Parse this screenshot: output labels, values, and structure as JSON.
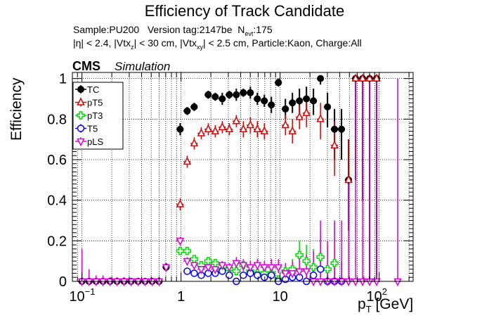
{
  "header": {
    "title": "Efficiency of Track Candidate",
    "info_sample": "Sample:PU200",
    "info_version": "Version tag:2147be",
    "info_nevt_prefix": "N",
    "info_nevt_sub": "evt",
    "info_nevt_value": ":175",
    "cut_eta": "|η| < 2.4, |Vtx",
    "cut_z_sub": "z",
    "cut_mid": "| < 30 cm, |Vtx",
    "cut_xy_sub": "xy",
    "cut_tail": "| < 2.5 cm, Particle:Kaon, Charge:All",
    "cms": "CMS",
    "simulation": "Simulation"
  },
  "chart_data": {
    "type": "scatter",
    "title": "Efficiency of Track Candidate",
    "xlabel_main": "p",
    "xlabel_sub": "T",
    "xlabel_unit": " [GeV]",
    "ylabel": "Efficiency",
    "x_scale": "log",
    "xlim": [
      0.08,
      220
    ],
    "ylim": [
      0,
      1.03
    ],
    "grid": true,
    "legend_position": "top-left",
    "x_ticks": [
      {
        "value": 0.1,
        "label": "10",
        "exp": "−1"
      },
      {
        "value": 1,
        "label": "1",
        "exp": ""
      },
      {
        "value": 10,
        "label": "10",
        "exp": ""
      },
      {
        "value": 100,
        "label": "10",
        "exp": "2"
      }
    ],
    "y_ticks": [
      {
        "value": 0,
        "label": "0"
      },
      {
        "value": 0.2,
        "label": "0.2"
      },
      {
        "value": 0.4,
        "label": "0.4"
      },
      {
        "value": 0.6,
        "label": "0.6"
      },
      {
        "value": 0.8,
        "label": "0.8"
      },
      {
        "value": 1.0,
        "label": "1"
      }
    ],
    "x": [
      0.1,
      0.118,
      0.139,
      0.163,
      0.192,
      0.226,
      0.266,
      0.313,
      0.369,
      0.434,
      0.511,
      0.601,
      0.708,
      0.833,
      0.98,
      1.154,
      1.358,
      1.599,
      1.882,
      2.215,
      2.607,
      3.069,
      3.612,
      4.252,
      5.005,
      5.891,
      6.934,
      8.162,
      9.608,
      11.309,
      13.312,
      15.669,
      18.444,
      21.71,
      25.555,
      30.081,
      35.408,
      41.679,
      49.06,
      57.749,
      67.975,
      80.012,
      94.176,
      110.858,
      130.492,
      153.605,
      180.8
    ],
    "bin_half_widths": [
      0.0085,
      0.0102,
      0.0117,
      0.0137,
      0.016,
      0.019,
      0.022,
      0.026,
      0.03,
      0.036,
      0.042,
      0.05,
      0.058,
      0.068,
      0.081,
      0.096,
      0.112,
      0.132,
      0.156,
      0.184,
      0.216,
      0.254,
      0.298,
      0.351,
      0.413,
      0.486,
      0.573,
      0.673,
      0.792,
      0.932,
      1.097,
      1.29,
      1.52,
      1.79,
      2.1,
      2.48,
      2.92,
      3.43,
      4.04,
      4.76,
      5.6,
      6.59,
      7.76,
      9.13,
      10.75,
      12.65,
      14.9
    ],
    "series": [
      {
        "name": "TC",
        "color": "#000000",
        "marker": "filled-circle",
        "points": [
          [
            0.1,
            0,
            0,
            0
          ],
          [
            0.118,
            0,
            0,
            0
          ],
          [
            0.139,
            0,
            0,
            0
          ],
          [
            0.163,
            0,
            0,
            0
          ],
          [
            0.192,
            0,
            0,
            0
          ],
          [
            0.226,
            0,
            0,
            0
          ],
          [
            0.266,
            0,
            0,
            0
          ],
          [
            0.313,
            0,
            0,
            0
          ],
          [
            0.369,
            0,
            0,
            0
          ],
          [
            0.434,
            0,
            0,
            0
          ],
          [
            0.511,
            0,
            0,
            0
          ],
          [
            0.601,
            0,
            0,
            0
          ],
          [
            0.708,
            0.07,
            0.02,
            0.02
          ],
          [
            0.98,
            0.75,
            0.03,
            0.03
          ],
          [
            1.154,
            0.84,
            0.02,
            0.02
          ],
          [
            1.358,
            0.86,
            0.02,
            0.02
          ],
          [
            1.882,
            0.92,
            0.02,
            0.02
          ],
          [
            2.215,
            0.91,
            0.02,
            0.02
          ],
          [
            2.607,
            0.9,
            0.03,
            0.03
          ],
          [
            3.069,
            0.92,
            0.02,
            0.02
          ],
          [
            3.612,
            0.92,
            0.03,
            0.03
          ],
          [
            4.252,
            0.93,
            0.02,
            0.02
          ],
          [
            5.005,
            0.93,
            0.03,
            0.03
          ],
          [
            5.891,
            0.9,
            0.03,
            0.03
          ],
          [
            6.934,
            0.89,
            0.03,
            0.03
          ],
          [
            8.162,
            0.87,
            0.04,
            0.04
          ],
          [
            9.608,
            0.98,
            0.02,
            0.02
          ],
          [
            11.309,
            0.85,
            0.05,
            0.05
          ],
          [
            13.312,
            0.88,
            0.05,
            0.05
          ],
          [
            15.669,
            0.89,
            0.06,
            0.06
          ],
          [
            18.444,
            0.9,
            0.07,
            0.06
          ],
          [
            21.71,
            0.89,
            0.07,
            0.06
          ],
          [
            25.555,
            1.0,
            0.03,
            0.0
          ],
          [
            30.081,
            0.86,
            0.1,
            0.07
          ],
          [
            35.408,
            0.75,
            0.15,
            0.1
          ],
          [
            41.679,
            0.75,
            0.15,
            0.1
          ],
          [
            49.06,
            0.5,
            0.25,
            0.2
          ],
          [
            57.749,
            1.0,
            0.5,
            0.0
          ],
          [
            67.975,
            1.0,
            0.6,
            0.0
          ],
          [
            80.012,
            1.0,
            1.0,
            0.0
          ],
          [
            94.176,
            1.0,
            1.0,
            0.0
          ]
        ]
      },
      {
        "name": "pT5",
        "color": "#e00000",
        "marker": "open-triangle-up",
        "points": [
          [
            0.98,
            0.38,
            0.03,
            0.03
          ],
          [
            1.154,
            0.59,
            0.03,
            0.03
          ],
          [
            1.358,
            0.68,
            0.03,
            0.03
          ],
          [
            1.599,
            0.73,
            0.03,
            0.03
          ],
          [
            1.882,
            0.75,
            0.03,
            0.03
          ],
          [
            2.215,
            0.74,
            0.03,
            0.03
          ],
          [
            2.607,
            0.76,
            0.03,
            0.03
          ],
          [
            3.069,
            0.75,
            0.03,
            0.03
          ],
          [
            3.612,
            0.79,
            0.03,
            0.03
          ],
          [
            4.252,
            0.75,
            0.04,
            0.04
          ],
          [
            5.005,
            0.77,
            0.04,
            0.04
          ],
          [
            5.891,
            0.75,
            0.04,
            0.04
          ],
          [
            6.934,
            0.74,
            0.04,
            0.04
          ],
          [
            11.309,
            0.77,
            0.05,
            0.05
          ],
          [
            13.312,
            0.74,
            0.06,
            0.06
          ],
          [
            15.669,
            0.81,
            0.06,
            0.06
          ],
          [
            18.444,
            0.83,
            0.07,
            0.06
          ],
          [
            25.555,
            0.8,
            0.1,
            0.08
          ],
          [
            35.408,
            0.67,
            0.15,
            0.12
          ],
          [
            49.06,
            0.5,
            0.25,
            0.2
          ],
          [
            57.749,
            1.0,
            0.5,
            0.0
          ],
          [
            67.975,
            1.0,
            0.6,
            0.0
          ],
          [
            80.012,
            1.0,
            1.0,
            0.0
          ],
          [
            94.176,
            1.0,
            1.0,
            0.0
          ]
        ]
      },
      {
        "name": "pT3",
        "color": "#00dd00",
        "marker": "open-cross",
        "points": [
          [
            0.98,
            0.15,
            0.02,
            0.02
          ],
          [
            1.154,
            0.15,
            0.02,
            0.02
          ],
          [
            1.358,
            0.11,
            0.02,
            0.02
          ],
          [
            1.599,
            0.08,
            0.02,
            0.02
          ],
          [
            1.882,
            0.1,
            0.02,
            0.02
          ],
          [
            2.215,
            0.09,
            0.02,
            0.02
          ],
          [
            2.607,
            0.06,
            0.02,
            0.02
          ],
          [
            3.069,
            0.06,
            0.02,
            0.02
          ],
          [
            3.612,
            0.05,
            0.02,
            0.02
          ],
          [
            4.252,
            0.08,
            0.02,
            0.02
          ],
          [
            5.005,
            0.05,
            0.02,
            0.02
          ],
          [
            5.891,
            0.04,
            0.02,
            0.02
          ],
          [
            6.934,
            0.04,
            0.02,
            0.02
          ],
          [
            8.162,
            0.04,
            0.03,
            0.03
          ],
          [
            9.608,
            0.01,
            0.01,
            0.02
          ],
          [
            11.309,
            0.05,
            0.03,
            0.04
          ],
          [
            13.312,
            0.06,
            0.04,
            0.05
          ],
          [
            15.669,
            0.13,
            0.06,
            0.07
          ],
          [
            18.444,
            0.1,
            0.06,
            0.08
          ],
          [
            21.71,
            0.07,
            0.05,
            0.09
          ],
          [
            25.555,
            0.12,
            0.08,
            0.12
          ],
          [
            30.081,
            0.06,
            0.05,
            0.12
          ],
          [
            35.408,
            0.09,
            0.08,
            0.2
          ]
        ]
      },
      {
        "name": "T5",
        "color": "#0000ee",
        "marker": "open-circle",
        "points": [
          [
            1.154,
            0.05,
            0.01,
            0.01
          ],
          [
            1.358,
            0.04,
            0.01,
            0.01
          ],
          [
            1.599,
            0.03,
            0.01,
            0.01
          ],
          [
            1.882,
            0.04,
            0.01,
            0.01
          ],
          [
            2.215,
            0.04,
            0.01,
            0.01
          ],
          [
            2.607,
            0.05,
            0.01,
            0.01
          ],
          [
            3.069,
            0.03,
            0.01,
            0.01
          ],
          [
            3.612,
            0.0,
            0.0,
            0.01
          ],
          [
            4.252,
            0.03,
            0.01,
            0.01
          ],
          [
            5.005,
            0.04,
            0.02,
            0.02
          ],
          [
            5.891,
            0.03,
            0.02,
            0.02
          ],
          [
            6.934,
            0.02,
            0.01,
            0.02
          ],
          [
            8.162,
            0.03,
            0.02,
            0.02
          ],
          [
            9.608,
            0.0,
            0.0,
            0.02
          ],
          [
            11.309,
            0.01,
            0.01,
            0.02
          ],
          [
            13.312,
            0.02,
            0.02,
            0.03
          ],
          [
            15.669,
            0.02,
            0.02,
            0.03
          ],
          [
            18.444,
            0.0,
            0.0,
            0.03
          ],
          [
            21.71,
            0.03,
            0.03,
            0.05
          ],
          [
            25.555,
            0.06,
            0.04,
            0.09
          ],
          [
            30.081,
            0.0,
            0.0,
            0.06
          ],
          [
            35.408,
            0.0,
            0.0,
            0.1
          ],
          [
            41.679,
            0.0,
            0.0,
            0.1
          ]
        ]
      },
      {
        "name": "pLS",
        "color": "#dd00dd",
        "marker": "open-triangle-down",
        "points": [
          [
            0.1,
            0.0,
            0.0,
            0.16
          ],
          [
            0.118,
            0.0,
            0.0,
            0.06
          ],
          [
            0.139,
            0.0,
            0.0,
            0.03
          ],
          [
            0.163,
            0.0,
            0.0,
            0.03
          ],
          [
            0.192,
            0.0,
            0.0,
            0.02
          ],
          [
            0.226,
            0.0,
            0.0,
            0.02
          ],
          [
            0.266,
            0.0,
            0.0,
            0.02
          ],
          [
            0.313,
            0.0,
            0.0,
            0.01
          ],
          [
            0.369,
            0.0,
            0.0,
            0.01
          ],
          [
            0.434,
            0.0,
            0.0,
            0.01
          ],
          [
            0.511,
            0.0,
            0.0,
            0.01
          ],
          [
            0.601,
            0.0,
            0.0,
            0.01
          ],
          [
            0.708,
            0.07,
            0.02,
            0.02
          ],
          [
            0.98,
            0.2,
            0.02,
            0.02
          ],
          [
            1.154,
            0.1,
            0.02,
            0.02
          ],
          [
            1.358,
            0.08,
            0.02,
            0.02
          ],
          [
            1.599,
            0.06,
            0.02,
            0.02
          ],
          [
            1.882,
            0.07,
            0.02,
            0.02
          ],
          [
            2.215,
            0.06,
            0.02,
            0.02
          ],
          [
            2.607,
            0.08,
            0.02,
            0.02
          ],
          [
            3.069,
            0.07,
            0.02,
            0.02
          ],
          [
            3.612,
            0.09,
            0.03,
            0.03
          ],
          [
            4.252,
            0.08,
            0.03,
            0.03
          ],
          [
            5.005,
            0.07,
            0.03,
            0.03
          ],
          [
            5.891,
            0.08,
            0.03,
            0.03
          ],
          [
            6.934,
            0.07,
            0.03,
            0.03
          ],
          [
            8.162,
            0.07,
            0.03,
            0.04
          ],
          [
            9.608,
            0.07,
            0.03,
            0.04
          ],
          [
            11.309,
            0.04,
            0.03,
            0.05
          ],
          [
            13.312,
            0.04,
            0.03,
            0.06
          ],
          [
            15.669,
            0.05,
            0.04,
            0.07
          ],
          [
            18.444,
            0.05,
            0.04,
            0.08
          ],
          [
            21.71,
            0.0,
            0.0,
            0.15
          ],
          [
            25.555,
            0.0,
            0.0,
            0.3
          ],
          [
            30.081,
            0.0,
            0.0,
            0.2
          ],
          [
            35.408,
            0.0,
            0.0,
            0.3
          ],
          [
            41.679,
            0.0,
            0.0,
            0.3
          ],
          [
            49.06,
            0.0,
            0.0,
            0.5
          ],
          [
            57.749,
            0.0,
            0.0,
            1.0
          ],
          [
            67.975,
            0.0,
            0.0,
            1.0
          ],
          [
            80.012,
            0.0,
            0.0,
            1.0
          ],
          [
            94.176,
            0.0,
            0.0,
            1.0
          ],
          [
            153.605,
            0.0,
            0.0,
            1.0
          ]
        ]
      }
    ]
  }
}
